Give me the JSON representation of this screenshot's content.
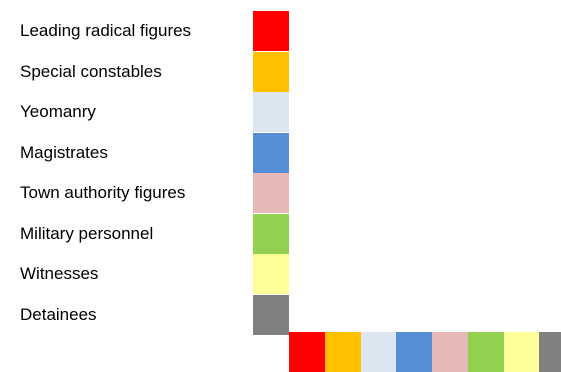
{
  "legend": {
    "items": [
      {
        "label": "Leading radical figures",
        "color": "#ff0000"
      },
      {
        "label": "Special constables",
        "color": "#ffc000"
      },
      {
        "label": "Yeomanry",
        "color": "#dce6f1"
      },
      {
        "label": "Magistrates",
        "color": "#558ed5"
      },
      {
        "label": "Town authority figures",
        "color": "#e6b9b8"
      },
      {
        "label": "Military personnel",
        "color": "#92d050"
      },
      {
        "label": "Witnesses",
        "color": "#ffff99"
      },
      {
        "label": "Detainees",
        "color": "#808080"
      }
    ]
  }
}
